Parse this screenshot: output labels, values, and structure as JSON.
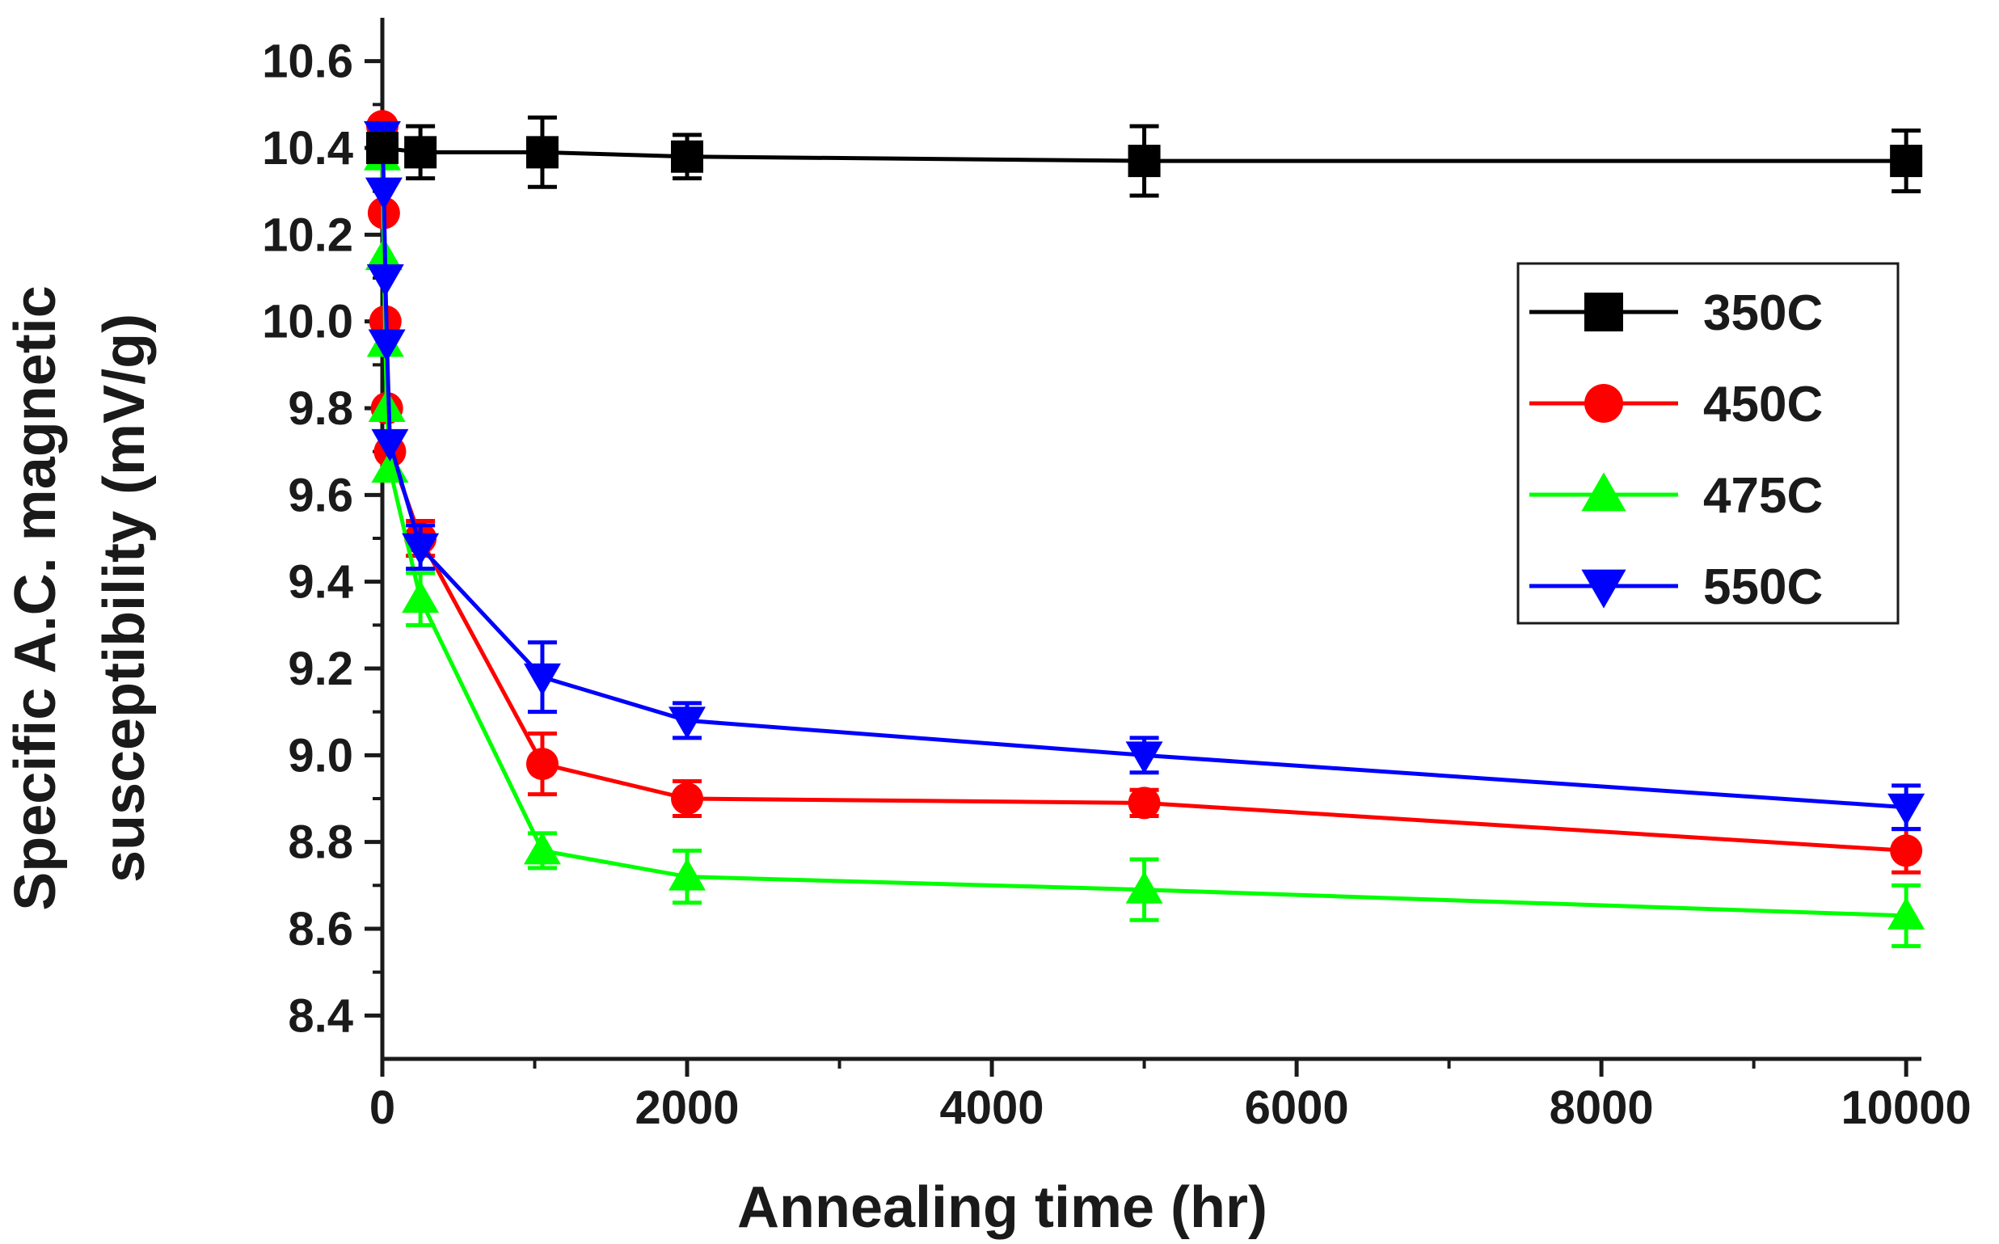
{
  "chart_data": {
    "type": "line",
    "title": "",
    "xlabel": "Annealing time (hr)",
    "ylabel_lines": [
      "Specific A.C. magnetic",
      "susceptibility (mV/g)"
    ],
    "xlim": [
      0,
      10100
    ],
    "ylim": [
      8.3,
      10.7
    ],
    "xticks": [
      0,
      2000,
      4000,
      6000,
      8000,
      10000
    ],
    "xtick_labels": [
      "0",
      "2000",
      "4000",
      "6000",
      "8000",
      "10000"
    ],
    "yticks": [
      8.4,
      8.6,
      8.8,
      9.0,
      9.2,
      9.4,
      9.6,
      9.8,
      10.0,
      10.2,
      10.4,
      10.6
    ],
    "ytick_labels": [
      "8.4",
      "8.6",
      "8.8",
      "9.0",
      "9.2",
      "9.4",
      "9.6",
      "9.8",
      "10.0",
      "10.2",
      "10.4",
      "10.6"
    ],
    "legend_position": "top-right",
    "grid": false,
    "series": [
      {
        "name": "350C",
        "color": "#000000",
        "marker": "square",
        "x": [
          0,
          250,
          1050,
          2000,
          5000,
          10000
        ],
        "y": [
          10.4,
          10.39,
          10.39,
          10.38,
          10.37,
          10.37
        ],
        "err": [
          0.03,
          0.06,
          0.08,
          0.05,
          0.08,
          0.07
        ]
      },
      {
        "name": "450C",
        "color": "#ff0000",
        "marker": "circle",
        "x": [
          0,
          10,
          20,
          30,
          50,
          250,
          1050,
          2000,
          5000,
          10000
        ],
        "y": [
          10.45,
          10.25,
          10.0,
          9.8,
          9.7,
          9.5,
          8.98,
          8.9,
          8.89,
          8.78
        ],
        "err": [
          0.02,
          0.02,
          0.02,
          0.02,
          0.02,
          0.04,
          0.07,
          0.04,
          0.03,
          0.05
        ]
      },
      {
        "name": "475C",
        "color": "#00ff00",
        "marker": "triangle-up",
        "x": [
          0,
          10,
          20,
          30,
          50,
          250,
          1050,
          2000,
          5000,
          10000
        ],
        "y": [
          10.38,
          10.15,
          9.95,
          9.8,
          9.66,
          9.36,
          8.78,
          8.72,
          8.69,
          8.63
        ],
        "err": [
          0.02,
          0.02,
          0.02,
          0.02,
          0.02,
          0.06,
          0.04,
          0.06,
          0.07,
          0.07
        ]
      },
      {
        "name": "550C",
        "color": "#0000ff",
        "marker": "triangle-down",
        "x": [
          0,
          10,
          20,
          30,
          50,
          250,
          1050,
          2000,
          5000,
          10000
        ],
        "y": [
          10.43,
          10.3,
          10.1,
          9.95,
          9.72,
          9.48,
          9.18,
          9.08,
          9.0,
          8.88
        ],
        "err": [
          0.02,
          0.02,
          0.02,
          0.02,
          0.02,
          0.05,
          0.08,
          0.04,
          0.04,
          0.05
        ]
      }
    ]
  }
}
